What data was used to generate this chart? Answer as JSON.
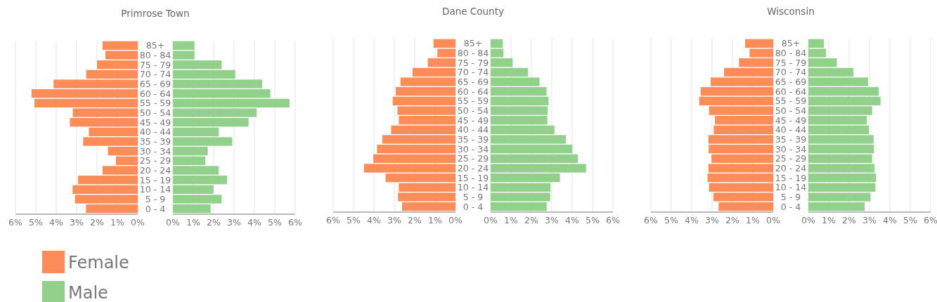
{
  "chart_data": [
    {
      "type": "bar",
      "orientation": "horizontal",
      "title": "Primrose Town",
      "categories": [
        "85+",
        "80 - 84",
        "75 - 79",
        "70 - 74",
        "65 - 69",
        "60 - 64",
        "55 - 59",
        "50 - 54",
        "45 - 49",
        "40 - 44",
        "35 - 39",
        "30 - 34",
        "25 - 29",
        "20 - 24",
        "15 - 19",
        "10 - 14",
        "5 - 9",
        "0 - 4"
      ],
      "series": [
        {
          "name": "Female",
          "color": "#fc8d59",
          "values": [
            1.73,
            1.59,
            2.0,
            2.53,
            4.13,
            5.21,
            5.07,
            3.19,
            3.33,
            2.4,
            2.68,
            1.46,
            1.07,
            1.73,
            2.93,
            3.2,
            3.08,
            2.54
          ]
        }
      ],
      "xlim": [
        6,
        0
      ],
      "xticks": [
        {
          "value": 6,
          "label": "6%"
        },
        {
          "value": 5,
          "label": "5%"
        },
        {
          "value": 4,
          "label": "4%"
        },
        {
          "value": 3,
          "label": "3%"
        },
        {
          "value": 2,
          "label": "2%"
        },
        {
          "value": 1,
          "label": "1%"
        },
        {
          "value": 0,
          "label": "0%"
        }
      ],
      "grid": "x",
      "legend": "bottom"
    },
    {
      "type": "bar",
      "orientation": "horizontal",
      "categories": [
        null,
        null,
        null,
        null,
        null,
        null,
        null,
        null,
        null,
        null,
        null,
        null,
        null,
        null,
        null,
        null,
        null,
        null
      ],
      "series": [
        {
          "name": "Male",
          "color": "#91d18b",
          "values": [
            1.06,
            1.06,
            2.39,
            3.06,
            4.38,
            4.78,
            5.72,
            4.11,
            3.71,
            2.25,
            2.91,
            1.71,
            1.59,
            2.25,
            2.66,
            1.99,
            2.39,
            1.85
          ]
        }
      ],
      "xlim": [
        0,
        6
      ],
      "xticks": [
        {
          "value": 0,
          "label": "0%"
        },
        {
          "value": 1,
          "label": "1%"
        },
        {
          "value": 2,
          "label": "2%"
        },
        {
          "value": 3,
          "label": "3%"
        },
        {
          "value": 4,
          "label": "4%"
        },
        {
          "value": 5,
          "label": "5%"
        },
        {
          "value": 6,
          "label": "6%"
        }
      ],
      "grid": "x",
      "tick_labels": "x"
    },
    {
      "type": "bar",
      "orientation": "horizontal",
      "title": "Dane County",
      "categories": [
        "85+",
        "80 - 84",
        "75 - 79",
        "70 - 74",
        "65 - 69",
        "60 - 64",
        "55 - 59",
        "50 - 54",
        "45 - 49",
        "40 - 44",
        "35 - 39",
        "30 - 34",
        "25 - 29",
        "20 - 24",
        "15 - 19",
        "10 - 14",
        "5 - 9",
        "0 - 4"
      ],
      "series": [
        {
          "color": "#fc8d59",
          "values": [
            1.08,
            0.89,
            1.36,
            2.11,
            2.7,
            2.93,
            3.08,
            2.85,
            2.78,
            3.16,
            3.59,
            3.85,
            4.03,
            4.49,
            3.43,
            2.78,
            2.82,
            2.62
          ]
        }
      ],
      "xlim": [
        6,
        0
      ],
      "xticks": [
        {
          "value": 6,
          "label": "6%"
        },
        {
          "value": 5,
          "label": "5%"
        },
        {
          "value": 4,
          "label": "4%"
        },
        {
          "value": 3,
          "label": "3%"
        },
        {
          "value": 2,
          "label": "2%"
        },
        {
          "value": 1,
          "label": "1%"
        },
        {
          "value": 0,
          "label": "0%"
        }
      ],
      "grid": "x"
    },
    {
      "type": "bar",
      "orientation": "horizontal",
      "categories": [
        null,
        null,
        null,
        null,
        null,
        null,
        null,
        null,
        null,
        null,
        null,
        null,
        null,
        null,
        null,
        null,
        null,
        null
      ],
      "series": [
        {
          "color": "#91d18b",
          "values": [
            0.6,
            0.63,
            1.08,
            1.84,
            2.4,
            2.74,
            2.84,
            2.8,
            2.78,
            3.13,
            3.69,
            4.01,
            4.28,
            4.68,
            3.4,
            2.94,
            2.92,
            2.75
          ]
        }
      ],
      "xlim": [
        0,
        6
      ],
      "xticks": [
        {
          "value": 0,
          "label": "0%"
        },
        {
          "value": 1,
          "label": "1%"
        },
        {
          "value": 2,
          "label": "2%"
        },
        {
          "value": 3,
          "label": "3%"
        },
        {
          "value": 4,
          "label": "4%"
        },
        {
          "value": 5,
          "label": "5%"
        },
        {
          "value": 6,
          "label": "6%"
        }
      ],
      "grid": "x",
      "tick_labels": "x"
    },
    {
      "type": "bar",
      "orientation": "horizontal",
      "title": "Wisconsin",
      "categories": [
        "85+",
        "80 - 84",
        "75 - 79",
        "70 - 74",
        "65 - 69",
        "60 - 64",
        "55 - 59",
        "50 - 54",
        "45 - 49",
        "40 - 44",
        "35 - 39",
        "30 - 34",
        "25 - 29",
        "20 - 24",
        "15 - 19",
        "10 - 14",
        "5 - 9",
        "0 - 4"
      ],
      "series": [
        {
          "color": "#fc8d59",
          "values": [
            1.38,
            1.16,
            1.68,
            2.41,
            3.07,
            3.56,
            3.63,
            3.15,
            2.86,
            2.92,
            3.18,
            3.17,
            3.03,
            3.18,
            3.22,
            3.15,
            2.93,
            2.68
          ]
        }
      ],
      "xlim": [
        6,
        0
      ],
      "xticks": [
        {
          "value": 6,
          "label": "6%"
        },
        {
          "value": 5,
          "label": "5%"
        },
        {
          "value": 4,
          "label": "4%"
        },
        {
          "value": 3,
          "label": "3%"
        },
        {
          "value": 2,
          "label": "2%"
        },
        {
          "value": 1,
          "label": "1%"
        },
        {
          "value": 0,
          "label": "0%"
        }
      ],
      "grid": "x"
    },
    {
      "type": "bar",
      "orientation": "horizontal",
      "categories": [
        null,
        null,
        null,
        null,
        null,
        null,
        null,
        null,
        null,
        null,
        null,
        null,
        null,
        null,
        null,
        null,
        null,
        null
      ],
      "series": [
        {
          "color": "#91d18b",
          "values": [
            0.76,
            0.87,
            1.4,
            2.21,
            2.93,
            3.45,
            3.54,
            3.13,
            2.87,
            2.97,
            3.2,
            3.22,
            3.13,
            3.24,
            3.32,
            3.29,
            3.05,
            2.76
          ]
        }
      ],
      "xlim": [
        0,
        6
      ],
      "xticks": [
        {
          "value": 0,
          "label": "0%"
        },
        {
          "value": 1,
          "label": "1%"
        },
        {
          "value": 2,
          "label": "2%"
        },
        {
          "value": 3,
          "label": "3%"
        },
        {
          "value": 4,
          "label": "4%"
        },
        {
          "value": 5,
          "label": "5%"
        },
        {
          "value": 6,
          "label": "6%"
        }
      ],
      "grid": "x",
      "tick_labels": "x"
    }
  ]
}
